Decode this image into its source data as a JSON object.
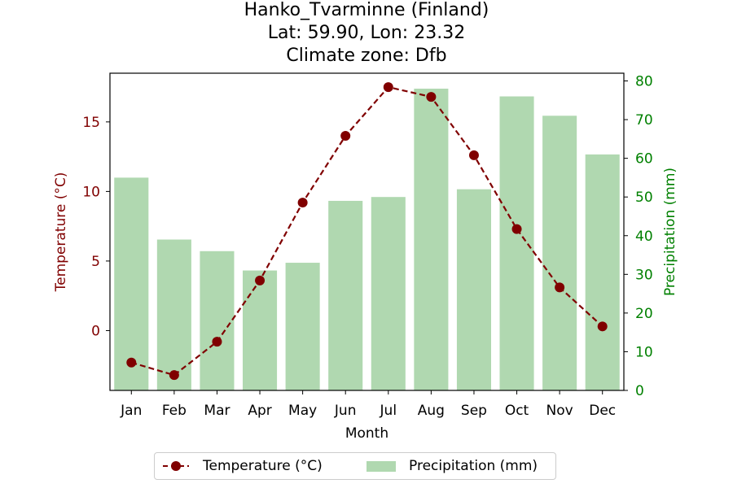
{
  "chart_data": {
    "type": "bar+line",
    "title": [
      "Hanko_Tvarminne (Finland)",
      "Lat: 59.90, Lon: 23.32",
      "Climate zone: Dfb"
    ],
    "xlabel": "Month",
    "categories": [
      "Jan",
      "Feb",
      "Mar",
      "Apr",
      "May",
      "Jun",
      "Jul",
      "Aug",
      "Sep",
      "Oct",
      "Nov",
      "Dec"
    ],
    "temperature": {
      "name": "Temperature (°C)",
      "axis_label": "Temperature (°C)",
      "values": [
        -2.3,
        -3.2,
        -0.8,
        3.6,
        9.2,
        14.0,
        17.5,
        16.8,
        12.6,
        7.3,
        3.1,
        0.3
      ],
      "ylim": [
        -4.3,
        18.5
      ],
      "ticks": [
        0,
        5,
        10,
        15
      ],
      "color": "#800000"
    },
    "precipitation": {
      "name": "Precipitation (mm)",
      "axis_label": "Precipitation (mm)",
      "values": [
        55,
        39,
        36,
        31,
        33,
        49,
        50,
        78,
        52,
        76,
        71,
        61
      ],
      "ylim": [
        0,
        82
      ],
      "ticks": [
        0,
        10,
        20,
        30,
        40,
        50,
        60,
        70,
        80
      ],
      "color": "#b0d8b0",
      "axis_color": "#008000"
    },
    "legend_position": "bottom-center"
  }
}
